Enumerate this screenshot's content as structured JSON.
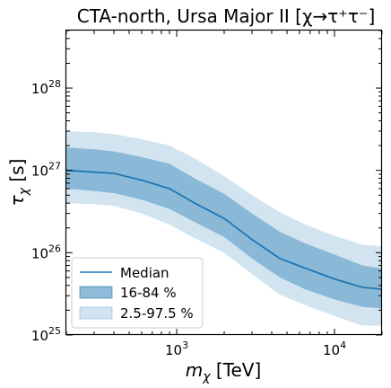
{
  "chart_data": {
    "type": "line",
    "title": "CTA-north, Ursa Major II [χ→τ⁺τ⁻]",
    "xlabel": "mχ [TeV]",
    "ylabel": "τχ [s]",
    "xscale": "log",
    "yscale": "log",
    "xlim": [
      200,
      20000
    ],
    "ylim": [
      1e+25,
      5e+28
    ],
    "x_ticks": [
      1000,
      10000
    ],
    "x_tick_labels": [
      "10^3",
      "10^4"
    ],
    "y_ticks": [
      1e+25,
      1e+26,
      1e+27,
      1e+28
    ],
    "y_tick_labels": [
      "10^25",
      "10^26",
      "10^27",
      "10^28"
    ],
    "grid": false,
    "legend_position": "lower-left",
    "x": [
      200,
      300,
      400,
      600,
      900,
      1300,
      2000,
      3000,
      4500,
      6500,
      10000,
      15000,
      20000
    ],
    "series": [
      {
        "name": "Median",
        "style": "line",
        "color": "#1f77b4",
        "values": [
          1e+27,
          9.5e+26,
          9.2e+26,
          7.6e+26,
          6e+26,
          4e+26,
          2.6e+26,
          1.45e+26,
          8.5e+25,
          6.5e+25,
          4.8e+25,
          3.8e+25,
          3.6e+25
        ]
      },
      {
        "name": "16-84 %",
        "style": "band",
        "color": "#1f77b4",
        "opacity": 0.4,
        "lower": [
          6e+26,
          5.6e+26,
          5.3e+26,
          4.4e+26,
          3.4e+26,
          2.35e+26,
          1.55e+26,
          8.5e+25,
          5e+25,
          3.6e+25,
          2.7e+25,
          2.2e+25,
          2.1e+25
        ],
        "upper": [
          1.9e+27,
          1.8e+27,
          1.7e+27,
          1.45e+27,
          1.2e+27,
          8e+26,
          5.2e+26,
          3e+26,
          1.8e+26,
          1.3e+26,
          9.5e+25,
          7e+25,
          6.4e+25
        ]
      },
      {
        "name": "2.5-97.5 %",
        "style": "band",
        "color": "#1f77b4",
        "opacity": 0.2,
        "lower": [
          4e+26,
          3.9e+26,
          3.7e+26,
          3e+26,
          2.2e+26,
          1.5e+26,
          1e+26,
          5.5e+25,
          3.1e+25,
          2.3e+25,
          1.7e+25,
          1.3e+25,
          1.3e+25
        ],
        "upper": [
          3e+27,
          2.9e+27,
          2.75e+27,
          2.4e+27,
          2e+27,
          1.4e+27,
          8.5e+26,
          5e+26,
          3.1e+26,
          2.2e+26,
          1.6e+26,
          1.25e+26,
          1.2e+26
        ]
      }
    ]
  }
}
